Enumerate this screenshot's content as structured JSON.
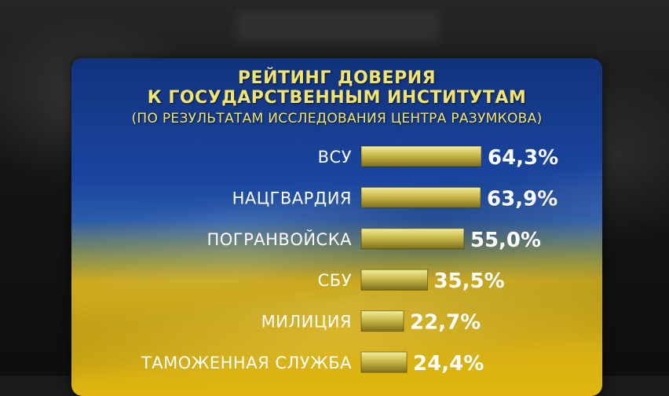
{
  "chart_data": {
    "type": "bar",
    "orientation": "horizontal",
    "title": [
      "РЕЙТИНГ ДОВЕРИЯ",
      "К ГОСУДАРСТВЕННЫМ ИНСТИТУТАМ"
    ],
    "subtitle": "(ПО РЕЗУЛЬТАТАМ ИССЛЕДОВАНИЯ ЦЕНТРА РАЗУМКОВА)",
    "categories": [
      "ВСУ",
      "НАЦГВАРДИЯ",
      "ПОГРАНВОЙСКА",
      "СБУ",
      "МИЛИЦИЯ",
      "ТАМОЖЕННАЯ СЛУЖБА"
    ],
    "values": [
      64.3,
      63.9,
      55.0,
      35.5,
      22.7,
      24.4
    ],
    "value_labels": [
      "64,3%",
      "63,9%",
      "55,0%",
      "35,5%",
      "22,7%",
      "24,4%"
    ],
    "grid": false,
    "legend": "none",
    "colors": {
      "bar_light": "#f3ec9c",
      "bar_mid": "#c9ba4c",
      "bar_dark": "#7f6f18",
      "title_text": "#f2e46e",
      "label_text": "#ffffff"
    }
  }
}
